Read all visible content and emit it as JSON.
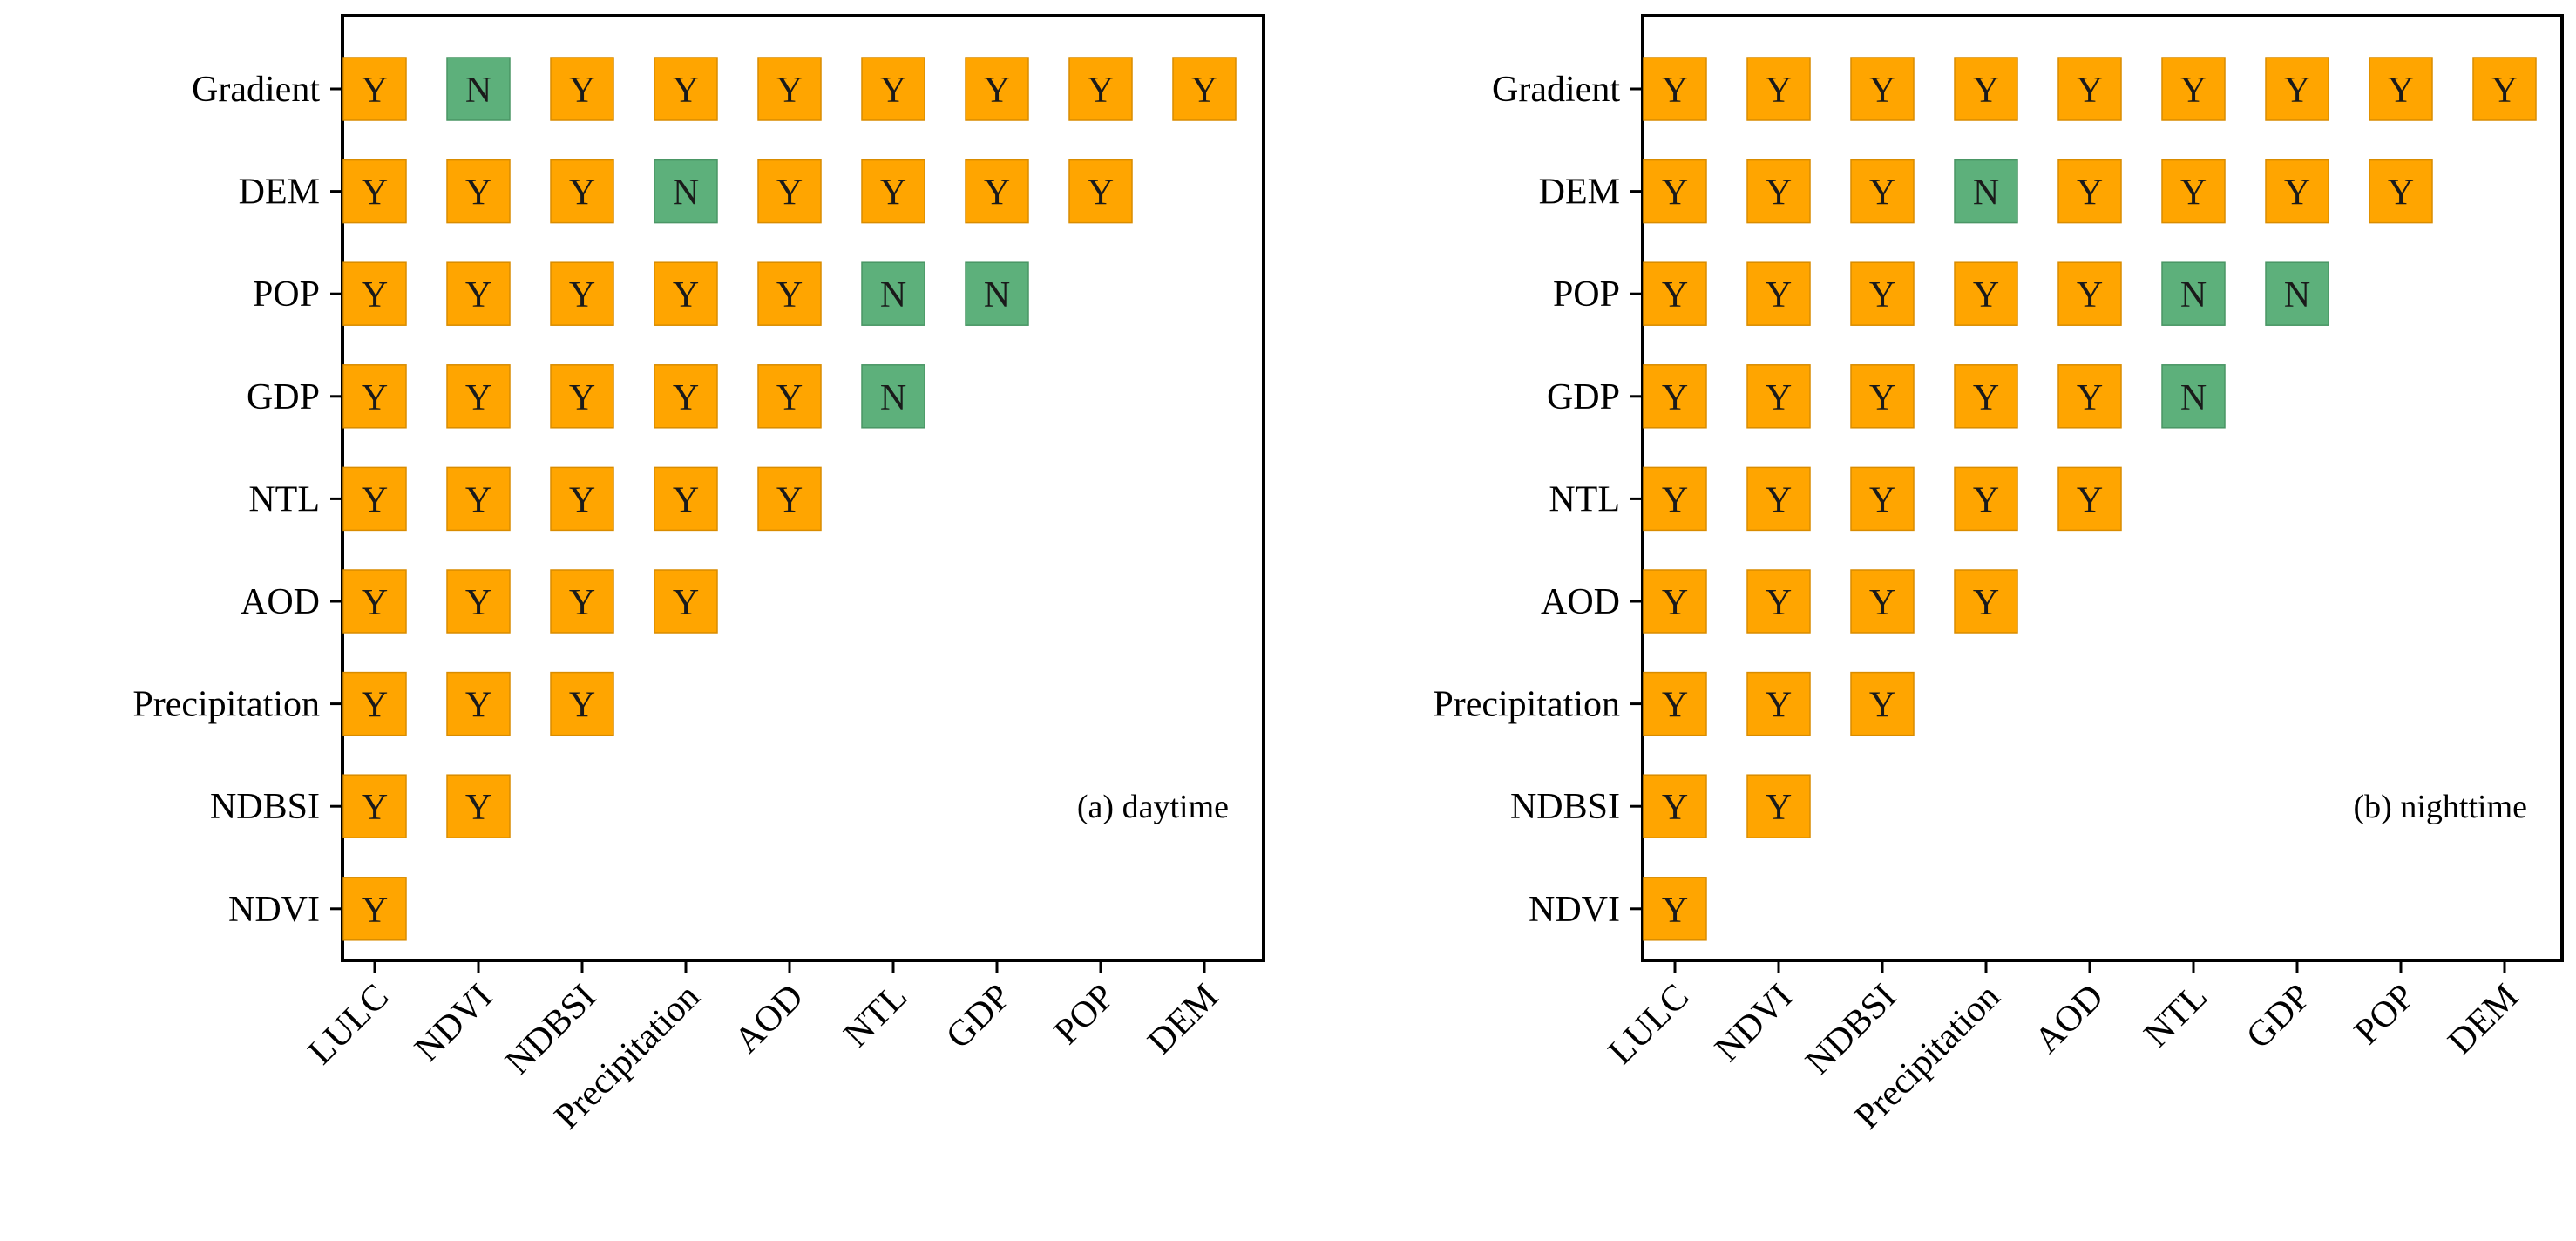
{
  "colors": {
    "yes": "#FFA500",
    "no": "#5DB07B",
    "yes_edge": "#d98c00",
    "no_edge": "#4a9665",
    "axis": "#000000"
  },
  "chart_data": [
    {
      "type": "heatmap",
      "title": "",
      "annotation": "(a) daytime",
      "x_categories": [
        "LULC",
        "NDVI",
        "NDBSI",
        "Precipitation",
        "AOD",
        "NTL",
        "GDP",
        "POP",
        "DEM"
      ],
      "y_categories": [
        "Gradient",
        "DEM",
        "POP",
        "GDP",
        "NTL",
        "AOD",
        "Precipitation",
        "NDBSI",
        "NDVI"
      ],
      "cells": [
        [
          "Y",
          "N",
          "Y",
          "Y",
          "Y",
          "Y",
          "Y",
          "Y",
          "Y"
        ],
        [
          "Y",
          "Y",
          "Y",
          "N",
          "Y",
          "Y",
          "Y",
          "Y"
        ],
        [
          "Y",
          "Y",
          "Y",
          "Y",
          "Y",
          "N",
          "N"
        ],
        [
          "Y",
          "Y",
          "Y",
          "Y",
          "Y",
          "N"
        ],
        [
          "Y",
          "Y",
          "Y",
          "Y",
          "Y"
        ],
        [
          "Y",
          "Y",
          "Y",
          "Y"
        ],
        [
          "Y",
          "Y",
          "Y"
        ],
        [
          "Y",
          "Y"
        ],
        [
          "Y"
        ]
      ]
    },
    {
      "type": "heatmap",
      "title": "",
      "annotation": "(b) nighttime",
      "x_categories": [
        "LULC",
        "NDVI",
        "NDBSI",
        "Precipitation",
        "AOD",
        "NTL",
        "GDP",
        "POP",
        "DEM"
      ],
      "y_categories": [
        "Gradient",
        "DEM",
        "POP",
        "GDP",
        "NTL",
        "AOD",
        "Precipitation",
        "NDBSI",
        "NDVI"
      ],
      "cells": [
        [
          "Y",
          "Y",
          "Y",
          "Y",
          "Y",
          "Y",
          "Y",
          "Y",
          "Y"
        ],
        [
          "Y",
          "Y",
          "Y",
          "N",
          "Y",
          "Y",
          "Y",
          "Y"
        ],
        [
          "Y",
          "Y",
          "Y",
          "Y",
          "Y",
          "N",
          "N"
        ],
        [
          "Y",
          "Y",
          "Y",
          "Y",
          "Y",
          "N"
        ],
        [
          "Y",
          "Y",
          "Y",
          "Y",
          "Y"
        ],
        [
          "Y",
          "Y",
          "Y",
          "Y"
        ],
        [
          "Y",
          "Y",
          "Y"
        ],
        [
          "Y",
          "Y"
        ],
        [
          "Y"
        ]
      ]
    }
  ]
}
